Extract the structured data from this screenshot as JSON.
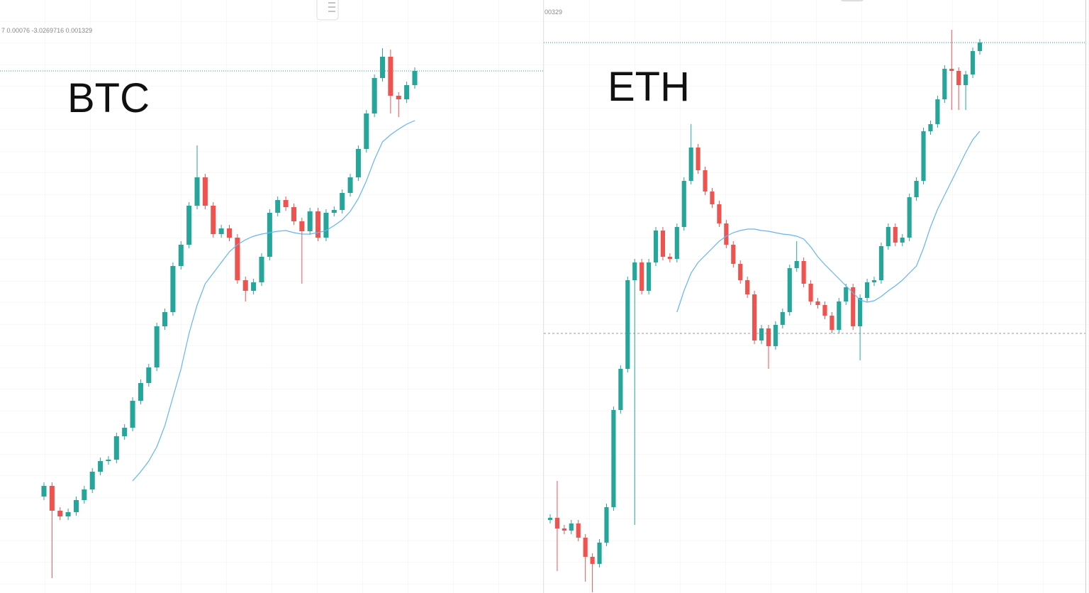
{
  "chart_data": [
    {
      "type": "candlestick",
      "title": "BTC",
      "legend_text": "7 0.00076 -3.0269716 0.001329",
      "up_color": "#26a69a",
      "down_color": "#ef5350",
      "ylim": [
        0,
        836
      ],
      "price_line": 736,
      "ohlc": [
        [
          136,
          156,
          131,
          151
        ],
        [
          151,
          156,
          21,
          116
        ],
        [
          116,
          121,
          103,
          108
        ],
        [
          108,
          119,
          103,
          114
        ],
        [
          114,
          136,
          109,
          131
        ],
        [
          131,
          151,
          126,
          146
        ],
        [
          146,
          176,
          141,
          171
        ],
        [
          171,
          191,
          166,
          186
        ],
        [
          186,
          193,
          181,
          188
        ],
        [
          188,
          226,
          183,
          221
        ],
        [
          221,
          238,
          216,
          233
        ],
        [
          233,
          276,
          228,
          271
        ],
        [
          271,
          301,
          266,
          296
        ],
        [
          296,
          323,
          291,
          318
        ],
        [
          318,
          381,
          313,
          376
        ],
        [
          376,
          401,
          371,
          396
        ],
        [
          396,
          466,
          391,
          461
        ],
        [
          461,
          496,
          456,
          491
        ],
        [
          491,
          551,
          486,
          546
        ],
        [
          546,
          631,
          541,
          586
        ],
        [
          586,
          591,
          541,
          546
        ],
        [
          546,
          551,
          501,
          506
        ],
        [
          506,
          519,
          501,
          514
        ],
        [
          514,
          519,
          496,
          501
        ],
        [
          501,
          506,
          436,
          441
        ],
        [
          441,
          446,
          411,
          426
        ],
        [
          426,
          443,
          421,
          438
        ],
        [
          438,
          479,
          433,
          474
        ],
        [
          474,
          541,
          469,
          536
        ],
        [
          536,
          559,
          531,
          554
        ],
        [
          554,
          559,
          539,
          544
        ],
        [
          544,
          549,
          519,
          524
        ],
        [
          524,
          529,
          436,
          510
        ],
        [
          510,
          543,
          505,
          538
        ],
        [
          538,
          543,
          496,
          501
        ],
        [
          501,
          541,
          496,
          536
        ],
        [
          536,
          545,
          531,
          540
        ],
        [
          540,
          569,
          535,
          564
        ],
        [
          564,
          591,
          559,
          586
        ],
        [
          586,
          631,
          581,
          626
        ],
        [
          626,
          681,
          621,
          676
        ],
        [
          676,
          731,
          671,
          726
        ],
        [
          726,
          768,
          721,
          756
        ],
        [
          756,
          766,
          676,
          701
        ],
        [
          701,
          706,
          671,
          696
        ],
        [
          696,
          721,
          691,
          716
        ],
        [
          716,
          741,
          711,
          736
        ]
      ],
      "ma": {
        "color": "#64b5f6",
        "values": [
          null,
          null,
          null,
          null,
          null,
          null,
          null,
          null,
          null,
          null,
          null,
          158,
          171,
          186,
          206,
          236,
          276,
          316,
          366,
          406,
          436,
          451,
          466,
          481,
          491,
          498,
          503,
          506,
          508,
          510,
          511,
          508,
          506,
          506,
          508,
          511,
          518,
          526,
          538,
          556,
          581,
          611,
          636,
          646,
          654,
          661,
          666
        ]
      }
    },
    {
      "type": "candlestick",
      "title": "ETH",
      "legend_text": "00329",
      "up_color": "#26a69a",
      "down_color": "#ef5350",
      "ylim": [
        0,
        836
      ],
      "price_line": 776,
      "ref_line": 366,
      "ohlc": [
        [
          103,
          111,
          98,
          106
        ],
        [
          106,
          158,
          31,
          91
        ],
        [
          91,
          96,
          83,
          88
        ],
        [
          88,
          103,
          83,
          98
        ],
        [
          98,
          103,
          73,
          78
        ],
        [
          78,
          83,
          16,
          51
        ],
        [
          51,
          56,
          1,
          41
        ],
        [
          41,
          76,
          36,
          71
        ],
        [
          71,
          126,
          66,
          121
        ],
        [
          121,
          263,
          116,
          258
        ],
        [
          258,
          321,
          253,
          316
        ],
        [
          316,
          446,
          311,
          441
        ],
        [
          441,
          471,
          96,
          466
        ],
        [
          466,
          471,
          421,
          426
        ],
        [
          426,
          471,
          421,
          466
        ],
        [
          466,
          516,
          461,
          511
        ],
        [
          511,
          516,
          469,
          474
        ],
        [
          474,
          479,
          466,
          471
        ],
        [
          471,
          521,
          466,
          516
        ],
        [
          516,
          586,
          511,
          581
        ],
        [
          581,
          661,
          576,
          628
        ],
        [
          628,
          633,
          591,
          596
        ],
        [
          596,
          601,
          561,
          566
        ],
        [
          566,
          571,
          543,
          548
        ],
        [
          548,
          553,
          516,
          521
        ],
        [
          521,
          526,
          486,
          491
        ],
        [
          491,
          496,
          459,
          464
        ],
        [
          464,
          469,
          436,
          441
        ],
        [
          441,
          446,
          416,
          421
        ],
        [
          421,
          426,
          351,
          356
        ],
        [
          356,
          378,
          351,
          373
        ],
        [
          373,
          378,
          316,
          348
        ],
        [
          348,
          383,
          343,
          378
        ],
        [
          378,
          401,
          373,
          396
        ],
        [
          396,
          463,
          391,
          458
        ],
        [
          458,
          496,
          453,
          468
        ],
        [
          468,
          473,
          431,
          436
        ],
        [
          436,
          441,
          406,
          411
        ],
        [
          411,
          416,
          401,
          406
        ],
        [
          406,
          411,
          386,
          391
        ],
        [
          391,
          396,
          366,
          371
        ],
        [
          371,
          416,
          366,
          411
        ],
        [
          411,
          436,
          406,
          431
        ],
        [
          431,
          436,
          371,
          376
        ],
        [
          376,
          421,
          328,
          416
        ],
        [
          416,
          443,
          411,
          438
        ],
        [
          438,
          446,
          433,
          441
        ],
        [
          441,
          494,
          436,
          489
        ],
        [
          489,
          521,
          484,
          516
        ],
        [
          516,
          521,
          489,
          494
        ],
        [
          494,
          506,
          489,
          501
        ],
        [
          501,
          563,
          496,
          558
        ],
        [
          558,
          586,
          553,
          581
        ],
        [
          581,
          656,
          576,
          651
        ],
        [
          651,
          666,
          646,
          661
        ],
        [
          661,
          701,
          656,
          696
        ],
        [
          696,
          744,
          691,
          739
        ],
        [
          739,
          794,
          681,
          736
        ],
        [
          736,
          741,
          681,
          716
        ],
        [
          716,
          736,
          681,
          731
        ],
        [
          731,
          769,
          726,
          764
        ],
        [
          764,
          781,
          759,
          776
        ]
      ],
      "ma": {
        "color": "#64b5f6",
        "values": [
          null,
          null,
          null,
          null,
          null,
          null,
          null,
          null,
          null,
          null,
          null,
          null,
          null,
          null,
          null,
          null,
          null,
          null,
          396,
          426,
          451,
          466,
          476,
          486,
          496,
          503,
          508,
          511,
          513,
          513,
          511,
          510,
          508,
          506,
          505,
          503,
          499,
          488,
          474,
          463,
          453,
          443,
          433,
          423,
          413,
          410,
          412,
          418,
          426,
          433,
          441,
          451,
          461,
          486,
          516,
          541,
          561,
          581,
          601,
          621,
          639,
          651
        ]
      }
    }
  ]
}
